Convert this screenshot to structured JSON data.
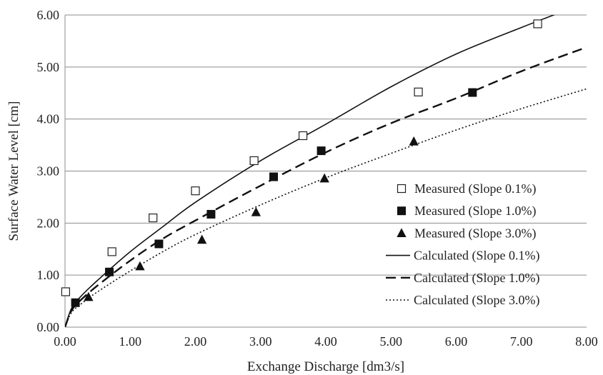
{
  "chart_data": {
    "type": "scatter",
    "xlabel": "Exchange Discharge [dm3/s]",
    "ylabel": "Surface Water Level [cm]",
    "xlim": [
      0,
      8
    ],
    "ylim": [
      0,
      6
    ],
    "x_ticks": [
      "0.00",
      "1.00",
      "2.00",
      "3.00",
      "4.00",
      "5.00",
      "6.00",
      "7.00",
      "8.00"
    ],
    "y_ticks": [
      "0.00",
      "1.00",
      "2.00",
      "3.00",
      "4.00",
      "5.00",
      "6.00"
    ],
    "grid": "horizontal",
    "legend_position": "right",
    "series": [
      {
        "name": "Measured (Slope 0.1%)",
        "kind": "points",
        "marker": "open-square",
        "x": [
          0.01,
          0.72,
          1.35,
          2.0,
          2.9,
          3.65,
          5.42,
          7.25
        ],
        "y": [
          0.68,
          1.45,
          2.1,
          2.62,
          3.2,
          3.68,
          4.52,
          5.83
        ]
      },
      {
        "name": "Measured (Slope 1.0%)",
        "kind": "points",
        "marker": "filled-square",
        "x": [
          0.16,
          0.68,
          1.44,
          2.24,
          3.2,
          3.93,
          6.25
        ],
        "y": [
          0.47,
          1.06,
          1.6,
          2.17,
          2.89,
          3.39,
          4.51
        ]
      },
      {
        "name": "Measured (Slope 3.0%)",
        "kind": "points",
        "marker": "filled-triangle",
        "x": [
          0.36,
          1.15,
          2.1,
          2.93,
          3.98,
          5.35
        ],
        "y": [
          0.58,
          1.17,
          1.68,
          2.21,
          2.86,
          3.57
        ]
      },
      {
        "name": "Calculated (Slope 0.1%)",
        "kind": "curve",
        "line_style": "solid",
        "x": [
          0,
          0.1,
          0.25,
          0.5,
          1.0,
          1.5,
          2.0,
          3.0,
          4.0,
          5.0,
          6.0,
          7.0,
          7.6
        ],
        "y": [
          0,
          0.36,
          0.6,
          0.9,
          1.45,
          1.93,
          2.4,
          3.2,
          3.9,
          4.62,
          5.25,
          5.76,
          6.05
        ]
      },
      {
        "name": "Calculated (Slope 1.0%)",
        "kind": "curve",
        "line_style": "dashed",
        "x": [
          0,
          0.1,
          0.25,
          0.5,
          1.0,
          1.5,
          2.0,
          3.0,
          4.0,
          5.0,
          6.0,
          7.0,
          8.0
        ],
        "y": [
          0,
          0.32,
          0.53,
          0.8,
          1.28,
          1.7,
          2.05,
          2.72,
          3.36,
          3.92,
          4.4,
          4.92,
          5.38
        ]
      },
      {
        "name": "Calculated (Slope 3.0%)",
        "kind": "curve",
        "line_style": "dotted",
        "x": [
          0,
          0.1,
          0.25,
          0.5,
          1.0,
          1.5,
          2.0,
          3.0,
          4.0,
          5.0,
          6.0,
          7.0,
          8.0
        ],
        "y": [
          0,
          0.28,
          0.45,
          0.68,
          1.08,
          1.45,
          1.78,
          2.35,
          2.87,
          3.34,
          3.79,
          4.2,
          4.58
        ]
      }
    ]
  }
}
